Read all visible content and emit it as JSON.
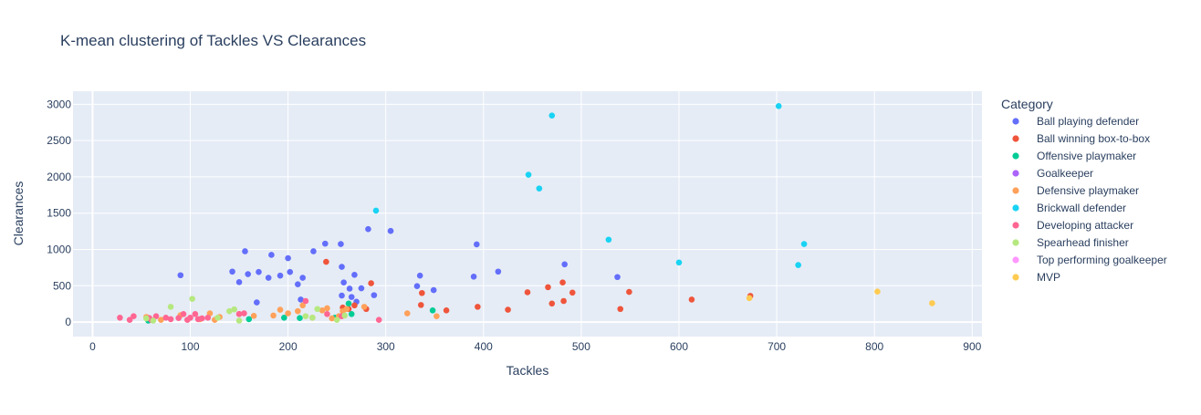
{
  "colors": {
    "plot_bg": "#e5ecf6",
    "grid": "#ffffff",
    "text": "#2a3f5f",
    "tick_text": "#2a3f5f"
  },
  "chart_data": {
    "type": "scatter",
    "title": "K-mean clustering of Tackles VS Clearances",
    "xlabel": "Tackles",
    "ylabel": "Clearances",
    "xlim": [
      -20,
      910
    ],
    "ylim": [
      -200,
      3180
    ],
    "xticks": [
      0,
      100,
      200,
      300,
      400,
      500,
      600,
      700,
      800,
      900
    ],
    "yticks": [
      0,
      500,
      1000,
      1500,
      2000,
      2500,
      3000
    ],
    "grid": true,
    "legend": {
      "title": "Category",
      "placement": "right"
    },
    "series": [
      {
        "name": "Ball playing defender",
        "color": "#636efa",
        "points": [
          [
            90,
            645
          ],
          [
            143,
            695
          ],
          [
            150,
            550
          ],
          [
            156,
            975
          ],
          [
            159,
            660
          ],
          [
            168,
            270
          ],
          [
            170,
            690
          ],
          [
            180,
            610
          ],
          [
            183,
            925
          ],
          [
            192,
            640
          ],
          [
            200,
            880
          ],
          [
            202,
            690
          ],
          [
            210,
            520
          ],
          [
            213,
            310
          ],
          [
            215,
            610
          ],
          [
            226,
            975
          ],
          [
            238,
            1080
          ],
          [
            254,
            1075
          ],
          [
            255,
            760
          ],
          [
            255,
            365
          ],
          [
            257,
            545
          ],
          [
            263,
            460
          ],
          [
            265,
            345
          ],
          [
            268,
            650
          ],
          [
            270,
            280
          ],
          [
            275,
            465
          ],
          [
            282,
            1280
          ],
          [
            288,
            370
          ],
          [
            305,
            1255
          ],
          [
            332,
            495
          ],
          [
            335,
            640
          ],
          [
            349,
            440
          ],
          [
            390,
            625
          ],
          [
            393,
            1070
          ],
          [
            415,
            695
          ],
          [
            483,
            795
          ],
          [
            537,
            620
          ]
        ]
      },
      {
        "name": "Ball winning box-to-box",
        "color": "#ef553b",
        "points": [
          [
            239,
            830
          ],
          [
            256,
            200
          ],
          [
            262,
            180
          ],
          [
            268,
            230
          ],
          [
            280,
            180
          ],
          [
            285,
            535
          ],
          [
            337,
            400
          ],
          [
            336,
            235
          ],
          [
            362,
            160
          ],
          [
            394,
            210
          ],
          [
            425,
            170
          ],
          [
            445,
            410
          ],
          [
            466,
            480
          ],
          [
            470,
            255
          ],
          [
            481,
            545
          ],
          [
            482,
            290
          ],
          [
            491,
            405
          ],
          [
            540,
            180
          ],
          [
            549,
            415
          ],
          [
            613,
            310
          ],
          [
            673,
            360
          ]
        ]
      },
      {
        "name": "Offensive playmaker",
        "color": "#00cc96",
        "points": [
          [
            57,
            20
          ],
          [
            160,
            40
          ],
          [
            196,
            60
          ],
          [
            212,
            55
          ],
          [
            248,
            60
          ],
          [
            262,
            255
          ],
          [
            265,
            110
          ],
          [
            348,
            160
          ]
        ]
      },
      {
        "name": "Goalkeeper",
        "color": "#ab63fa",
        "points": []
      },
      {
        "name": "Defensive playmaker",
        "color": "#ffa15a",
        "points": [
          [
            55,
            70
          ],
          [
            70,
            30
          ],
          [
            90,
            95
          ],
          [
            110,
            40
          ],
          [
            120,
            120
          ],
          [
            125,
            30
          ],
          [
            130,
            70
          ],
          [
            150,
            110
          ],
          [
            165,
            85
          ],
          [
            185,
            90
          ],
          [
            192,
            170
          ],
          [
            200,
            120
          ],
          [
            210,
            150
          ],
          [
            215,
            230
          ],
          [
            225,
            60
          ],
          [
            235,
            160
          ],
          [
            240,
            190
          ],
          [
            245,
            50
          ],
          [
            252,
            80
          ],
          [
            256,
            150
          ],
          [
            260,
            180
          ],
          [
            278,
            210
          ],
          [
            322,
            120
          ],
          [
            352,
            80
          ]
        ]
      },
      {
        "name": "Brickwall defender",
        "color": "#19d3f3",
        "points": [
          [
            290,
            1535
          ],
          [
            446,
            2030
          ],
          [
            457,
            1840
          ],
          [
            470,
            2845
          ],
          [
            528,
            1135
          ],
          [
            600,
            820
          ],
          [
            702,
            2975
          ],
          [
            722,
            785
          ],
          [
            728,
            1075
          ]
        ]
      },
      {
        "name": "Developing attacker",
        "color": "#ff6692",
        "points": [
          [
            28,
            60
          ],
          [
            38,
            30
          ],
          [
            42,
            80
          ],
          [
            58,
            55
          ],
          [
            60,
            30
          ],
          [
            65,
            80
          ],
          [
            75,
            60
          ],
          [
            80,
            40
          ],
          [
            88,
            55
          ],
          [
            93,
            110
          ],
          [
            97,
            30
          ],
          [
            100,
            60
          ],
          [
            105,
            110
          ],
          [
            108,
            40
          ],
          [
            112,
            50
          ],
          [
            118,
            60
          ],
          [
            150,
            110
          ],
          [
            155,
            120
          ],
          [
            218,
            290
          ],
          [
            240,
            110
          ],
          [
            255,
            80
          ],
          [
            293,
            30
          ]
        ]
      },
      {
        "name": "Spearhead finisher",
        "color": "#b6e880",
        "points": [
          [
            55,
            50
          ],
          [
            62,
            20
          ],
          [
            80,
            210
          ],
          [
            102,
            320
          ],
          [
            128,
            60
          ],
          [
            140,
            150
          ],
          [
            145,
            175
          ],
          [
            150,
            20
          ],
          [
            218,
            80
          ],
          [
            225,
            60
          ],
          [
            230,
            180
          ],
          [
            250,
            30
          ],
          [
            258,
            90
          ]
        ]
      },
      {
        "name": "Top performing goalkeeper",
        "color": "#ff97ff",
        "points": []
      },
      {
        "name": "MVP",
        "color": "#fecb52",
        "points": [
          [
            672,
            330
          ],
          [
            803,
            420
          ],
          [
            859,
            260
          ]
        ]
      }
    ]
  }
}
